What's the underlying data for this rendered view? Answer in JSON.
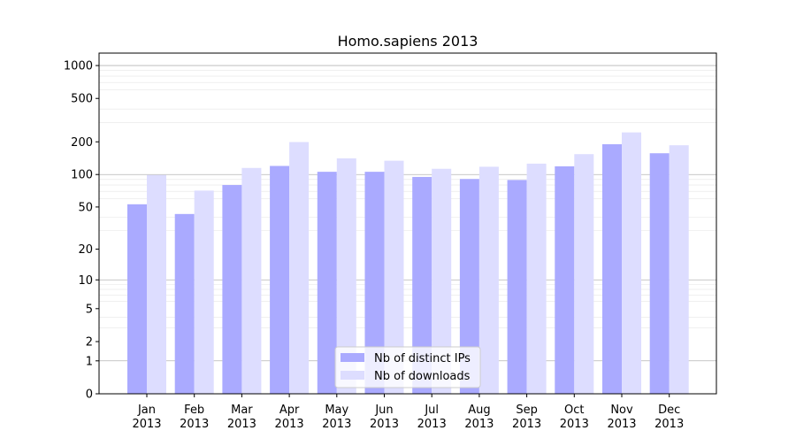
{
  "chart_data": {
    "type": "bar",
    "title": "Homo.sapiens 2013",
    "xlabel": "",
    "ylabel": "",
    "yscale": "symlog",
    "ylim": [
      0,
      1300
    ],
    "yticks": [
      {
        "value": 0,
        "label": "0"
      },
      {
        "value": 1,
        "label": "1"
      },
      {
        "value": 2,
        "label": "2"
      },
      {
        "value": 5,
        "label": "5"
      },
      {
        "value": 10,
        "label": "10"
      },
      {
        "value": 20,
        "label": "20"
      },
      {
        "value": 50,
        "label": "50"
      },
      {
        "value": 100,
        "label": "100"
      },
      {
        "value": 200,
        "label": "200"
      },
      {
        "value": 500,
        "label": "500"
      },
      {
        "value": 1000,
        "label": "1000"
      }
    ],
    "grid": true,
    "legend_position": "lower-center",
    "categories": [
      {
        "month": "Jan",
        "year": "2013"
      },
      {
        "month": "Feb",
        "year": "2013"
      },
      {
        "month": "Mar",
        "year": "2013"
      },
      {
        "month": "Apr",
        "year": "2013"
      },
      {
        "month": "May",
        "year": "2013"
      },
      {
        "month": "Jun",
        "year": "2013"
      },
      {
        "month": "Jul",
        "year": "2013"
      },
      {
        "month": "Aug",
        "year": "2013"
      },
      {
        "month": "Sep",
        "year": "2013"
      },
      {
        "month": "Oct",
        "year": "2013"
      },
      {
        "month": "Nov",
        "year": "2013"
      },
      {
        "month": "Dec",
        "year": "2013"
      }
    ],
    "series": [
      {
        "name": "Nb of distinct IPs",
        "color": "#aaaaff",
        "values": [
          53,
          43,
          80,
          120,
          106,
          106,
          95,
          91,
          89,
          119,
          190,
          157
        ]
      },
      {
        "name": "Nb of downloads",
        "color": "#ddddff",
        "values": [
          99,
          71,
          115,
          199,
          141,
          134,
          113,
          118,
          126,
          154,
          244,
          186
        ]
      }
    ]
  }
}
